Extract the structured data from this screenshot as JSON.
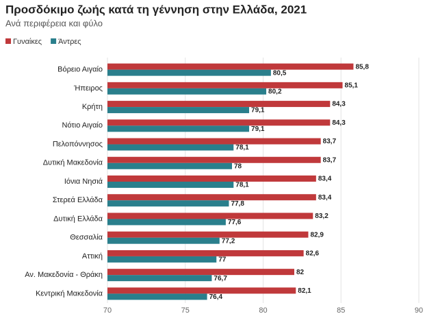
{
  "chart_data": {
    "type": "bar",
    "orientation": "horizontal",
    "title": "Προσδόκιμο ζωής κατά τη γέννηση στην Ελλάδα, 2021",
    "subtitle": "Ανά περιφέρεια και φύλο",
    "categories": [
      "Βόρειο Αιγαίο",
      "Ήπειρος",
      "Κρήτη",
      "Νότιο Αιγαίο",
      "Πελοπόννησος",
      "Δυτική Μακεδονία",
      "Ιόνια Νησιά",
      "Στερεά Ελλάδα",
      "Δυτική Ελλάδα",
      "Θεσσαλία",
      "Αττική",
      "Αν. Μακεδονία - Θράκη",
      "Κεντρική Μακεδονία"
    ],
    "series": [
      {
        "name": "Γυναίκες",
        "color": "#c0393b",
        "values": [
          85.8,
          85.1,
          84.3,
          84.3,
          83.7,
          83.7,
          83.4,
          83.4,
          83.2,
          82.9,
          82.6,
          82,
          82.1
        ],
        "value_labels": [
          "85,8",
          "85,1",
          "84,3",
          "84,3",
          "83,7",
          "83,7",
          "83,4",
          "83,4",
          "83,2",
          "82,9",
          "82,6",
          "82",
          "82,1"
        ]
      },
      {
        "name": "Άντρες",
        "color": "#2a7f8c",
        "values": [
          80.5,
          80.2,
          79.1,
          79.1,
          78.1,
          78,
          78.1,
          77.8,
          77.6,
          77.2,
          77,
          76.7,
          76.4
        ],
        "value_labels": [
          "80,5",
          "80,2",
          "79,1",
          "79,1",
          "78,1",
          "78",
          "78,1",
          "77,8",
          "77,6",
          "77,2",
          "77",
          "76,7",
          "76,4"
        ]
      }
    ],
    "xlim": [
      70,
      90
    ],
    "xticks": [
      70,
      75,
      80,
      85,
      90
    ],
    "grid": true,
    "legend": "top-left"
  }
}
